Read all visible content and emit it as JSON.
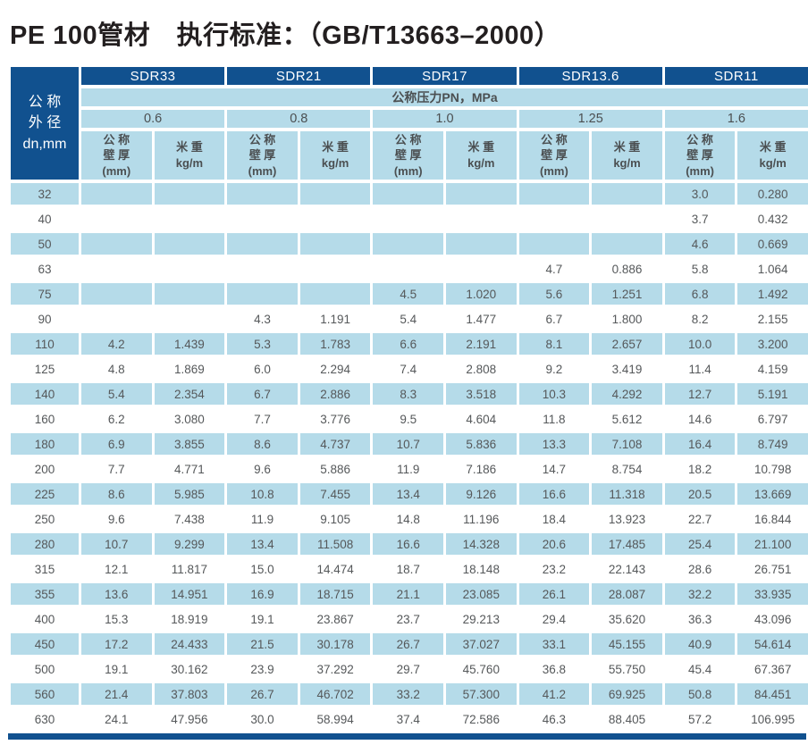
{
  "title": "PE 100管材　执行标准：（GB/T13663–2000）",
  "colors": {
    "header_navy": "#11518f",
    "stripe_blue": "#b5dbe9",
    "text_gray": "#55585a",
    "title_black": "#231f20"
  },
  "table": {
    "corner_header": "公 称\n外 径\ndn,mm",
    "sdr_groups": [
      "SDR33",
      "SDR21",
      "SDR17",
      "SDR13.6",
      "SDR11"
    ],
    "pressure_band_label": "公称压力PN，MPa",
    "pressures": [
      "0.6",
      "0.8",
      "1.0",
      "1.25",
      "1.6"
    ],
    "wall_header": "公 称\n壁 厚\n(mm)",
    "weight_header": "米 重\nkg/m",
    "rows": [
      {
        "dn": "32",
        "values": [
          "",
          "",
          "",
          "",
          "",
          "",
          "",
          "",
          "3.0",
          "0.280"
        ]
      },
      {
        "dn": "40",
        "values": [
          "",
          "",
          "",
          "",
          "",
          "",
          "",
          "",
          "3.7",
          "0.432"
        ]
      },
      {
        "dn": "50",
        "values": [
          "",
          "",
          "",
          "",
          "",
          "",
          "",
          "",
          "4.6",
          "0.669"
        ]
      },
      {
        "dn": "63",
        "values": [
          "",
          "",
          "",
          "",
          "",
          "",
          "4.7",
          "0.886",
          "5.8",
          "1.064"
        ]
      },
      {
        "dn": "75",
        "values": [
          "",
          "",
          "",
          "",
          "4.5",
          "1.020",
          "5.6",
          "1.251",
          "6.8",
          "1.492"
        ]
      },
      {
        "dn": "90",
        "values": [
          "",
          "",
          "4.3",
          "1.191",
          "5.4",
          "1.477",
          "6.7",
          "1.800",
          "8.2",
          "2.155"
        ]
      },
      {
        "dn": "110",
        "values": [
          "4.2",
          "1.439",
          "5.3",
          "1.783",
          "6.6",
          "2.191",
          "8.1",
          "2.657",
          "10.0",
          "3.200"
        ]
      },
      {
        "dn": "125",
        "values": [
          "4.8",
          "1.869",
          "6.0",
          "2.294",
          "7.4",
          "2.808",
          "9.2",
          "3.419",
          "11.4",
          "4.159"
        ]
      },
      {
        "dn": "140",
        "values": [
          "5.4",
          "2.354",
          "6.7",
          "2.886",
          "8.3",
          "3.518",
          "10.3",
          "4.292",
          "12.7",
          "5.191"
        ]
      },
      {
        "dn": "160",
        "values": [
          "6.2",
          "3.080",
          "7.7",
          "3.776",
          "9.5",
          "4.604",
          "11.8",
          "5.612",
          "14.6",
          "6.797"
        ]
      },
      {
        "dn": "180",
        "values": [
          "6.9",
          "3.855",
          "8.6",
          "4.737",
          "10.7",
          "5.836",
          "13.3",
          "7.108",
          "16.4",
          "8.749"
        ]
      },
      {
        "dn": "200",
        "values": [
          "7.7",
          "4.771",
          "9.6",
          "5.886",
          "11.9",
          "7.186",
          "14.7",
          "8.754",
          "18.2",
          "10.798"
        ]
      },
      {
        "dn": "225",
        "values": [
          "8.6",
          "5.985",
          "10.8",
          "7.455",
          "13.4",
          "9.126",
          "16.6",
          "11.318",
          "20.5",
          "13.669"
        ]
      },
      {
        "dn": "250",
        "values": [
          "9.6",
          "7.438",
          "11.9",
          "9.105",
          "14.8",
          "11.196",
          "18.4",
          "13.923",
          "22.7",
          "16.844"
        ]
      },
      {
        "dn": "280",
        "values": [
          "10.7",
          "9.299",
          "13.4",
          "11.508",
          "16.6",
          "14.328",
          "20.6",
          "17.485",
          "25.4",
          "21.100"
        ]
      },
      {
        "dn": "315",
        "values": [
          "12.1",
          "11.817",
          "15.0",
          "14.474",
          "18.7",
          "18.148",
          "23.2",
          "22.143",
          "28.6",
          "26.751"
        ]
      },
      {
        "dn": "355",
        "values": [
          "13.6",
          "14.951",
          "16.9",
          "18.715",
          "21.1",
          "23.085",
          "26.1",
          "28.087",
          "32.2",
          "33.935"
        ]
      },
      {
        "dn": "400",
        "values": [
          "15.3",
          "18.919",
          "19.1",
          "23.867",
          "23.7",
          "29.213",
          "29.4",
          "35.620",
          "36.3",
          "43.096"
        ]
      },
      {
        "dn": "450",
        "values": [
          "17.2",
          "24.433",
          "21.5",
          "30.178",
          "26.7",
          "37.027",
          "33.1",
          "45.155",
          "40.9",
          "54.614"
        ]
      },
      {
        "dn": "500",
        "values": [
          "19.1",
          "30.162",
          "23.9",
          "37.292",
          "29.7",
          "45.760",
          "36.8",
          "55.750",
          "45.4",
          "67.367"
        ]
      },
      {
        "dn": "560",
        "values": [
          "21.4",
          "37.803",
          "26.7",
          "46.702",
          "33.2",
          "57.300",
          "41.2",
          "69.925",
          "50.8",
          "84.451"
        ]
      },
      {
        "dn": "630",
        "values": [
          "24.1",
          "47.956",
          "30.0",
          "58.994",
          "37.4",
          "72.586",
          "46.3",
          "88.405",
          "57.2",
          "106.995"
        ]
      }
    ]
  }
}
